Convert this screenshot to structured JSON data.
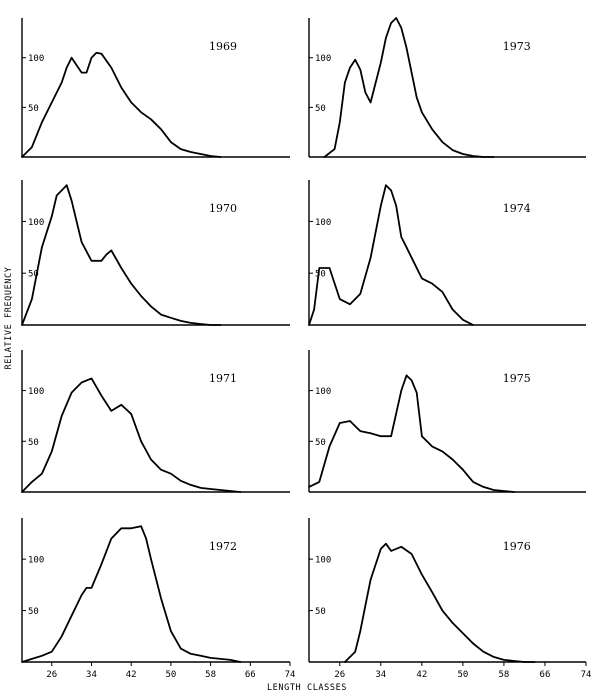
{
  "figure": {
    "ylabel": "RELATIVE FREQUENCY",
    "xlabel": "LENGTH CLASSES"
  },
  "chart_data": [
    {
      "type": "line",
      "title": "1969",
      "xlim": [
        20,
        74
      ],
      "ylim": [
        0,
        140
      ],
      "y_ticks": [
        50,
        100
      ],
      "x_ticks": [],
      "x": [
        20,
        22,
        24,
        26,
        28,
        29,
        30,
        32,
        33,
        34,
        35,
        36,
        38,
        40,
        42,
        44,
        46,
        48,
        50,
        52,
        54,
        56,
        58,
        60
      ],
      "y": [
        0,
        10,
        35,
        55,
        75,
        90,
        100,
        85,
        85,
        100,
        105,
        104,
        90,
        70,
        55,
        45,
        38,
        28,
        15,
        8,
        5,
        3,
        1,
        0
      ]
    },
    {
      "type": "line",
      "title": "1973",
      "xlim": [
        20,
        74
      ],
      "ylim": [
        0,
        140
      ],
      "y_ticks": [
        50,
        100
      ],
      "x_ticks": [],
      "x": [
        23,
        25,
        26,
        27,
        28,
        29,
        30,
        31,
        32,
        33,
        34,
        35,
        36,
        37,
        38,
        39,
        40,
        41,
        42,
        44,
        46,
        48,
        50,
        52,
        54,
        56
      ],
      "y": [
        0,
        8,
        35,
        75,
        90,
        98,
        88,
        65,
        55,
        75,
        95,
        120,
        135,
        140,
        130,
        110,
        85,
        60,
        45,
        28,
        15,
        7,
        3,
        1,
        0,
        0
      ]
    },
    {
      "type": "line",
      "title": "1970",
      "xlim": [
        20,
        74
      ],
      "ylim": [
        0,
        140
      ],
      "y_ticks": [
        50,
        100
      ],
      "x_ticks": [],
      "x": [
        20,
        22,
        24,
        26,
        27,
        28,
        29,
        30,
        32,
        34,
        36,
        37,
        38,
        40,
        42,
        44,
        46,
        48,
        50,
        52,
        54,
        56,
        58,
        60
      ],
      "y": [
        0,
        25,
        75,
        105,
        125,
        130,
        135,
        120,
        80,
        62,
        62,
        68,
        72,
        55,
        40,
        28,
        18,
        10,
        7,
        4,
        2,
        1,
        0,
        0
      ]
    },
    {
      "type": "line",
      "title": "1974",
      "xlim": [
        20,
        74
      ],
      "ylim": [
        0,
        140
      ],
      "y_ticks": [
        50,
        100
      ],
      "x_ticks": [],
      "x": [
        20,
        21,
        22,
        24,
        26,
        28,
        30,
        32,
        34,
        35,
        36,
        37,
        38,
        39,
        40,
        42,
        44,
        46,
        48,
        50,
        52
      ],
      "y": [
        0,
        15,
        55,
        55,
        25,
        20,
        30,
        65,
        115,
        135,
        130,
        115,
        85,
        75,
        65,
        45,
        40,
        32,
        15,
        5,
        0
      ]
    },
    {
      "type": "line",
      "title": "1971",
      "xlim": [
        20,
        74
      ],
      "ylim": [
        0,
        140
      ],
      "y_ticks": [
        50,
        100
      ],
      "x_ticks": [],
      "x": [
        20,
        22,
        24,
        26,
        28,
        30,
        32,
        34,
        36,
        38,
        40,
        42,
        44,
        46,
        48,
        50,
        52,
        54,
        56,
        58,
        60,
        62,
        64
      ],
      "y": [
        0,
        10,
        18,
        40,
        75,
        98,
        108,
        112,
        95,
        80,
        86,
        77,
        50,
        32,
        22,
        18,
        11,
        7,
        4,
        3,
        2,
        1,
        0
      ]
    },
    {
      "type": "line",
      "title": "1975",
      "xlim": [
        20,
        74
      ],
      "ylim": [
        0,
        140
      ],
      "y_ticks": [
        50,
        100
      ],
      "x_ticks": [],
      "x": [
        20,
        22,
        24,
        26,
        28,
        30,
        32,
        34,
        36,
        38,
        39,
        40,
        41,
        42,
        44,
        46,
        48,
        50,
        52,
        54,
        56,
        58,
        60
      ],
      "y": [
        5,
        10,
        45,
        68,
        70,
        60,
        58,
        55,
        55,
        100,
        115,
        110,
        98,
        55,
        45,
        40,
        32,
        22,
        10,
        5,
        2,
        1,
        0
      ]
    },
    {
      "type": "line",
      "title": "1972",
      "xlim": [
        20,
        74
      ],
      "ylim": [
        0,
        140
      ],
      "y_ticks": [
        50,
        100
      ],
      "x_ticks": [
        26,
        34,
        42,
        50,
        58,
        66,
        74
      ],
      "x": [
        20,
        22,
        24,
        26,
        28,
        30,
        32,
        33,
        34,
        36,
        38,
        40,
        42,
        44,
        45,
        46,
        48,
        50,
        52,
        54,
        56,
        58,
        60,
        62,
        64
      ],
      "y": [
        0,
        3,
        6,
        10,
        25,
        45,
        65,
        72,
        72,
        95,
        120,
        130,
        130,
        132,
        120,
        100,
        62,
        30,
        13,
        8,
        6,
        4,
        3,
        2,
        0
      ]
    },
    {
      "type": "line",
      "title": "1976",
      "xlim": [
        20,
        74
      ],
      "ylim": [
        0,
        140
      ],
      "y_ticks": [
        50,
        100
      ],
      "x_ticks": [
        26,
        34,
        42,
        50,
        58,
        66,
        74
      ],
      "x": [
        27,
        29,
        30,
        31,
        32,
        34,
        35,
        36,
        38,
        40,
        42,
        44,
        46,
        48,
        50,
        52,
        54,
        56,
        58,
        60,
        62,
        64
      ],
      "y": [
        0,
        10,
        30,
        55,
        80,
        110,
        115,
        108,
        112,
        105,
        85,
        68,
        50,
        38,
        28,
        18,
        10,
        5,
        2,
        1,
        0,
        0
      ]
    }
  ]
}
